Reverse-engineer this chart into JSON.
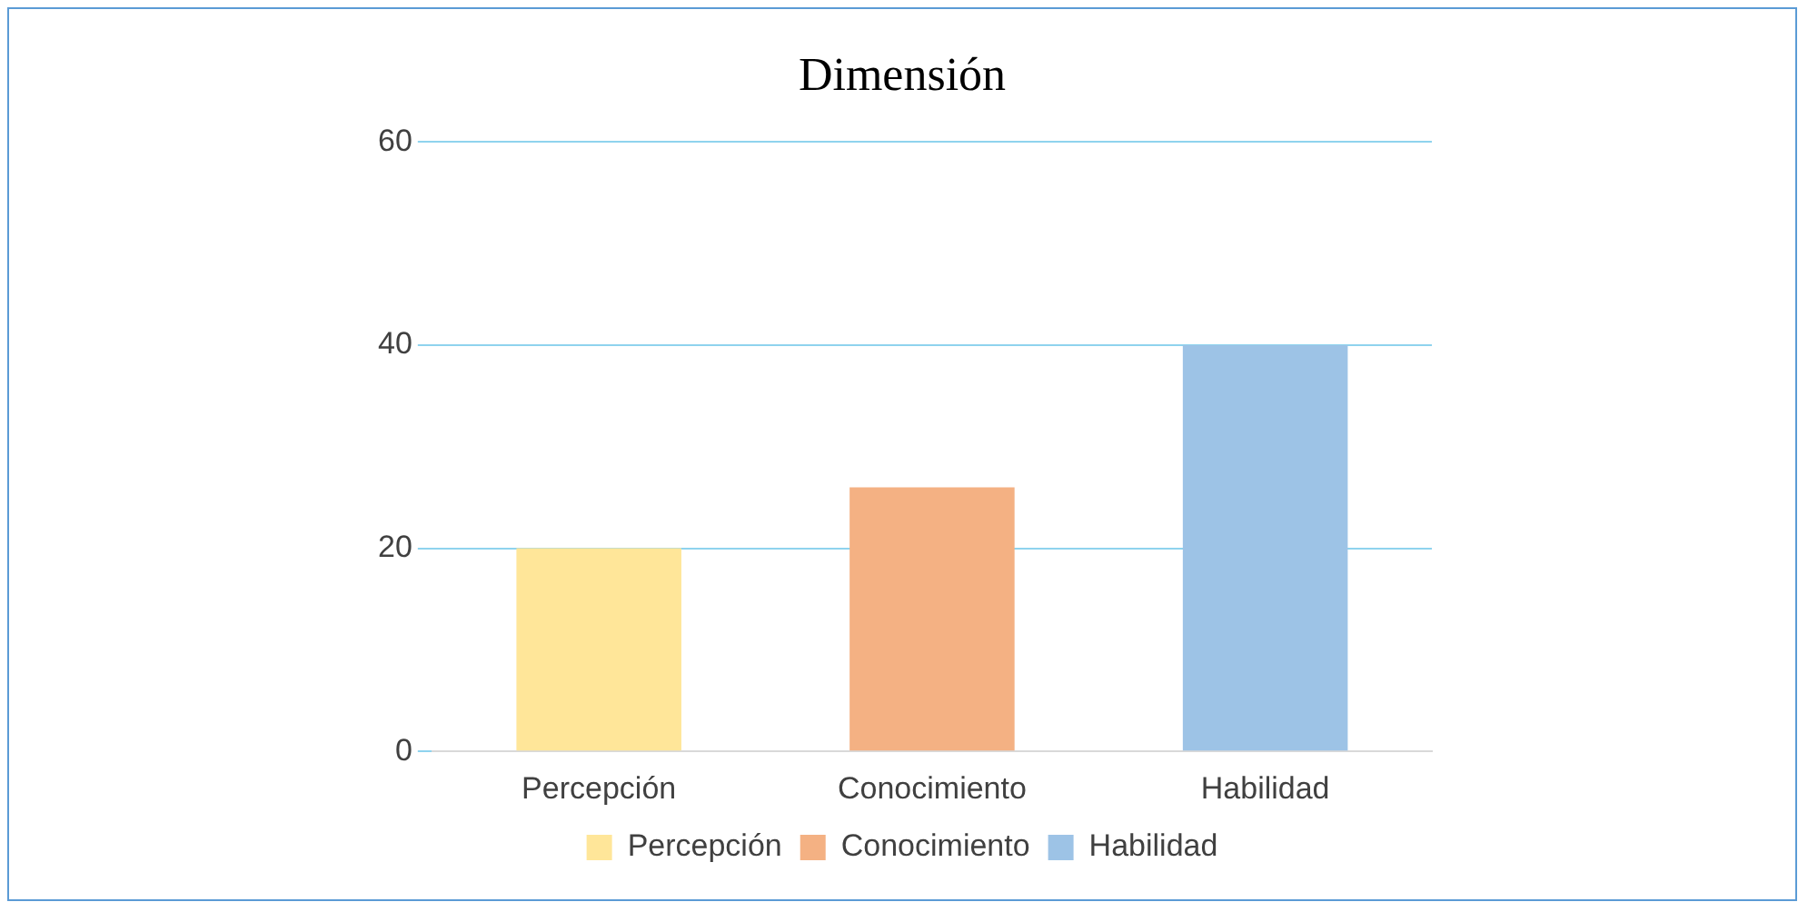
{
  "chart_data": {
    "type": "bar",
    "title": "Dimensión",
    "categories": [
      "Percepción",
      "Conocimiento",
      "Habilidad"
    ],
    "series": [
      {
        "name": "Percepción",
        "color": "#ffe699",
        "values": [
          20,
          null,
          null
        ]
      },
      {
        "name": "Conocimiento",
        "color": "#f4b183",
        "values": [
          null,
          26,
          null
        ]
      },
      {
        "name": "Habilidad",
        "color": "#9dc3e6",
        "values": [
          null,
          null,
          40
        ]
      }
    ],
    "ylim": [
      0,
      60
    ],
    "yticks": [
      0,
      20,
      40,
      60
    ],
    "grid": "y",
    "legend": "bottom"
  }
}
